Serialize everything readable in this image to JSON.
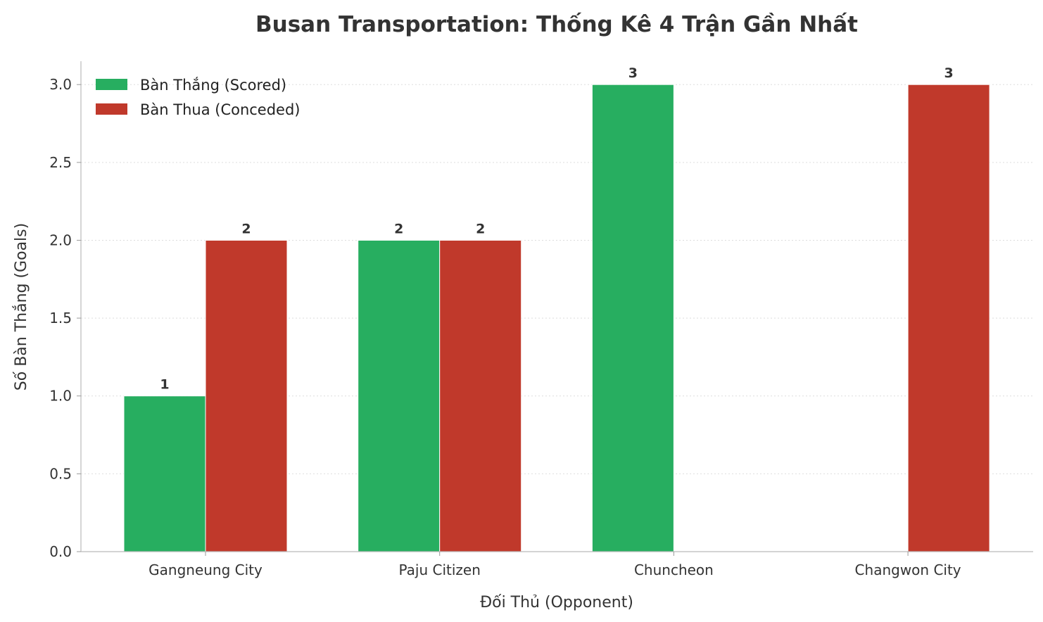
{
  "chart_data": {
    "type": "bar",
    "title": "Busan Transportation: Thống Kê 4 Trận Gần Nhất",
    "xlabel": "Đối Thủ (Opponent)",
    "ylabel": "Số Bàn Thắng (Goals)",
    "categories": [
      "Gangneung City",
      "Paju Citizen",
      "Chuncheon",
      "Changwon City"
    ],
    "series": [
      {
        "name": "Bàn Thắng (Scored)",
        "values": [
          1,
          2,
          3,
          0
        ],
        "color": "#27ae60"
      },
      {
        "name": "Bàn Thua (Conceded)",
        "values": [
          2,
          2,
          0,
          3
        ],
        "color": "#c0392b"
      }
    ],
    "yticks": [
      "0.0",
      "0.5",
      "1.0",
      "1.5",
      "2.0",
      "2.5",
      "3.0"
    ],
    "ylim": [
      0,
      3.15
    ],
    "grid": "horizontal dotted",
    "legend": "top-left"
  }
}
